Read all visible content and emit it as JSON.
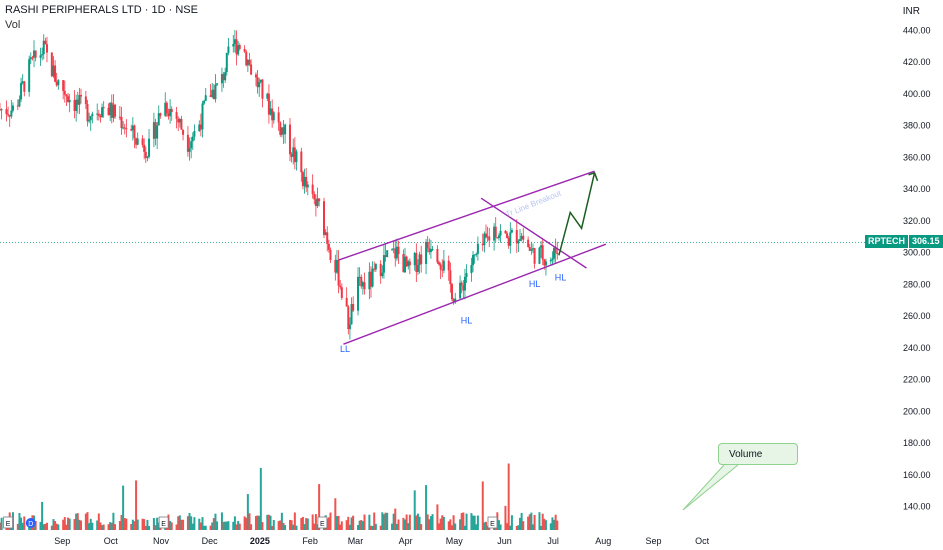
{
  "header": {
    "title": "RASHI PERIPHERALS LTD · 1D · NSE",
    "volume_label": "Vol",
    "currency": "INR"
  },
  "price_tag": {
    "symbol": "RPTECH",
    "value": "306.15"
  },
  "callout": {
    "text": "Volume"
  },
  "chart_data": {
    "type": "candlestick",
    "y_ticks": [
      440,
      420,
      400,
      380,
      360,
      340,
      320,
      300,
      280,
      260,
      240,
      220,
      200,
      180,
      160,
      140
    ],
    "ylim": [
      130,
      455
    ],
    "x_ticks": [
      "Sep",
      "Oct",
      "Nov",
      "Dec",
      "2025",
      "Feb",
      "Mar",
      "Apr",
      "May",
      "Jun",
      "Jul",
      "Aug",
      "Sep",
      "Oct"
    ],
    "last_price": 306.15,
    "price_path": [
      [
        "2024-08-10",
        390
      ],
      [
        "2024-08-20",
        418
      ],
      [
        "2024-08-28",
        428
      ],
      [
        "2024-09-05",
        408
      ],
      [
        "2024-09-15",
        395
      ],
      [
        "2024-09-25",
        388
      ],
      [
        "2024-10-05",
        392
      ],
      [
        "2024-10-15",
        383
      ],
      [
        "2024-10-25",
        370
      ],
      [
        "2024-11-01",
        365
      ],
      [
        "2024-11-10",
        395
      ],
      [
        "2024-11-18",
        385
      ],
      [
        "2024-11-25",
        370
      ],
      [
        "2024-12-01",
        378
      ],
      [
        "2024-12-08",
        400
      ],
      [
        "2024-12-15",
        405
      ],
      [
        "2024-12-22",
        430
      ],
      [
        "2024-12-28",
        432
      ],
      [
        "2025-01-05",
        410
      ],
      [
        "2025-01-15",
        390
      ],
      [
        "2025-01-25",
        372
      ],
      [
        "2025-02-01",
        355
      ],
      [
        "2025-02-08",
        335
      ],
      [
        "2025-02-14",
        328
      ],
      [
        "2025-02-20",
        305
      ],
      [
        "2025-02-26",
        285
      ],
      [
        "2025-03-04",
        255
      ],
      [
        "2025-03-10",
        278
      ],
      [
        "2025-03-18",
        282
      ],
      [
        "2025-03-26",
        295
      ],
      [
        "2025-04-03",
        300
      ],
      [
        "2025-04-10",
        288
      ],
      [
        "2025-04-18",
        298
      ],
      [
        "2025-04-25",
        308
      ],
      [
        "2025-05-02",
        290
      ],
      [
        "2025-05-10",
        268
      ],
      [
        "2025-05-16",
        288
      ],
      [
        "2025-05-24",
        300
      ],
      [
        "2025-06-02",
        315
      ],
      [
        "2025-06-10",
        308
      ],
      [
        "2025-06-18",
        312
      ],
      [
        "2025-06-25",
        300
      ],
      [
        "2025-07-02",
        298
      ],
      [
        "2025-07-08",
        296
      ],
      [
        "2025-07-12",
        306
      ]
    ],
    "trendlines": [
      {
        "name": "channel-upper",
        "color": "#9c27b0",
        "points": [
          [
            "2025-02-26",
            295
          ],
          [
            "2025-08-03",
            351
          ]
        ]
      },
      {
        "name": "channel-lower",
        "color": "#9c27b0",
        "points": [
          [
            "2025-03-01",
            242
          ],
          [
            "2025-08-10",
            305
          ]
        ]
      },
      {
        "name": "falling-trendline",
        "color": "#9c27b0",
        "points": [
          [
            "2025-05-25",
            334
          ],
          [
            "2025-07-29",
            290
          ]
        ]
      }
    ],
    "projection": {
      "color": "#1b5e20",
      "points": [
        [
          "2025-07-12",
          298
        ],
        [
          "2025-07-19",
          325
        ],
        [
          "2025-07-26",
          315
        ],
        [
          "2025-08-03",
          350
        ]
      ]
    },
    "annotations": [
      {
        "text": "LL",
        "at": [
          "2025-03-02",
          237
        ]
      },
      {
        "text": "HL",
        "at": [
          "2025-05-16",
          255
        ]
      },
      {
        "text": "HL",
        "at": [
          "2025-06-27",
          278
        ]
      },
      {
        "text": "HL",
        "at": [
          "2025-07-13",
          282
        ]
      }
    ],
    "faded_annotation": "Tr Line Breakout",
    "event_markers": [
      "E",
      "D",
      "E",
      "E",
      "E"
    ],
    "colors": {
      "up": "#089981",
      "down": "#f23645",
      "vol_up": "#26a69a",
      "vol_down": "#ef5350",
      "channel": "#9c27b0",
      "projection": "#1b5e20",
      "label": "#2962ff"
    }
  }
}
